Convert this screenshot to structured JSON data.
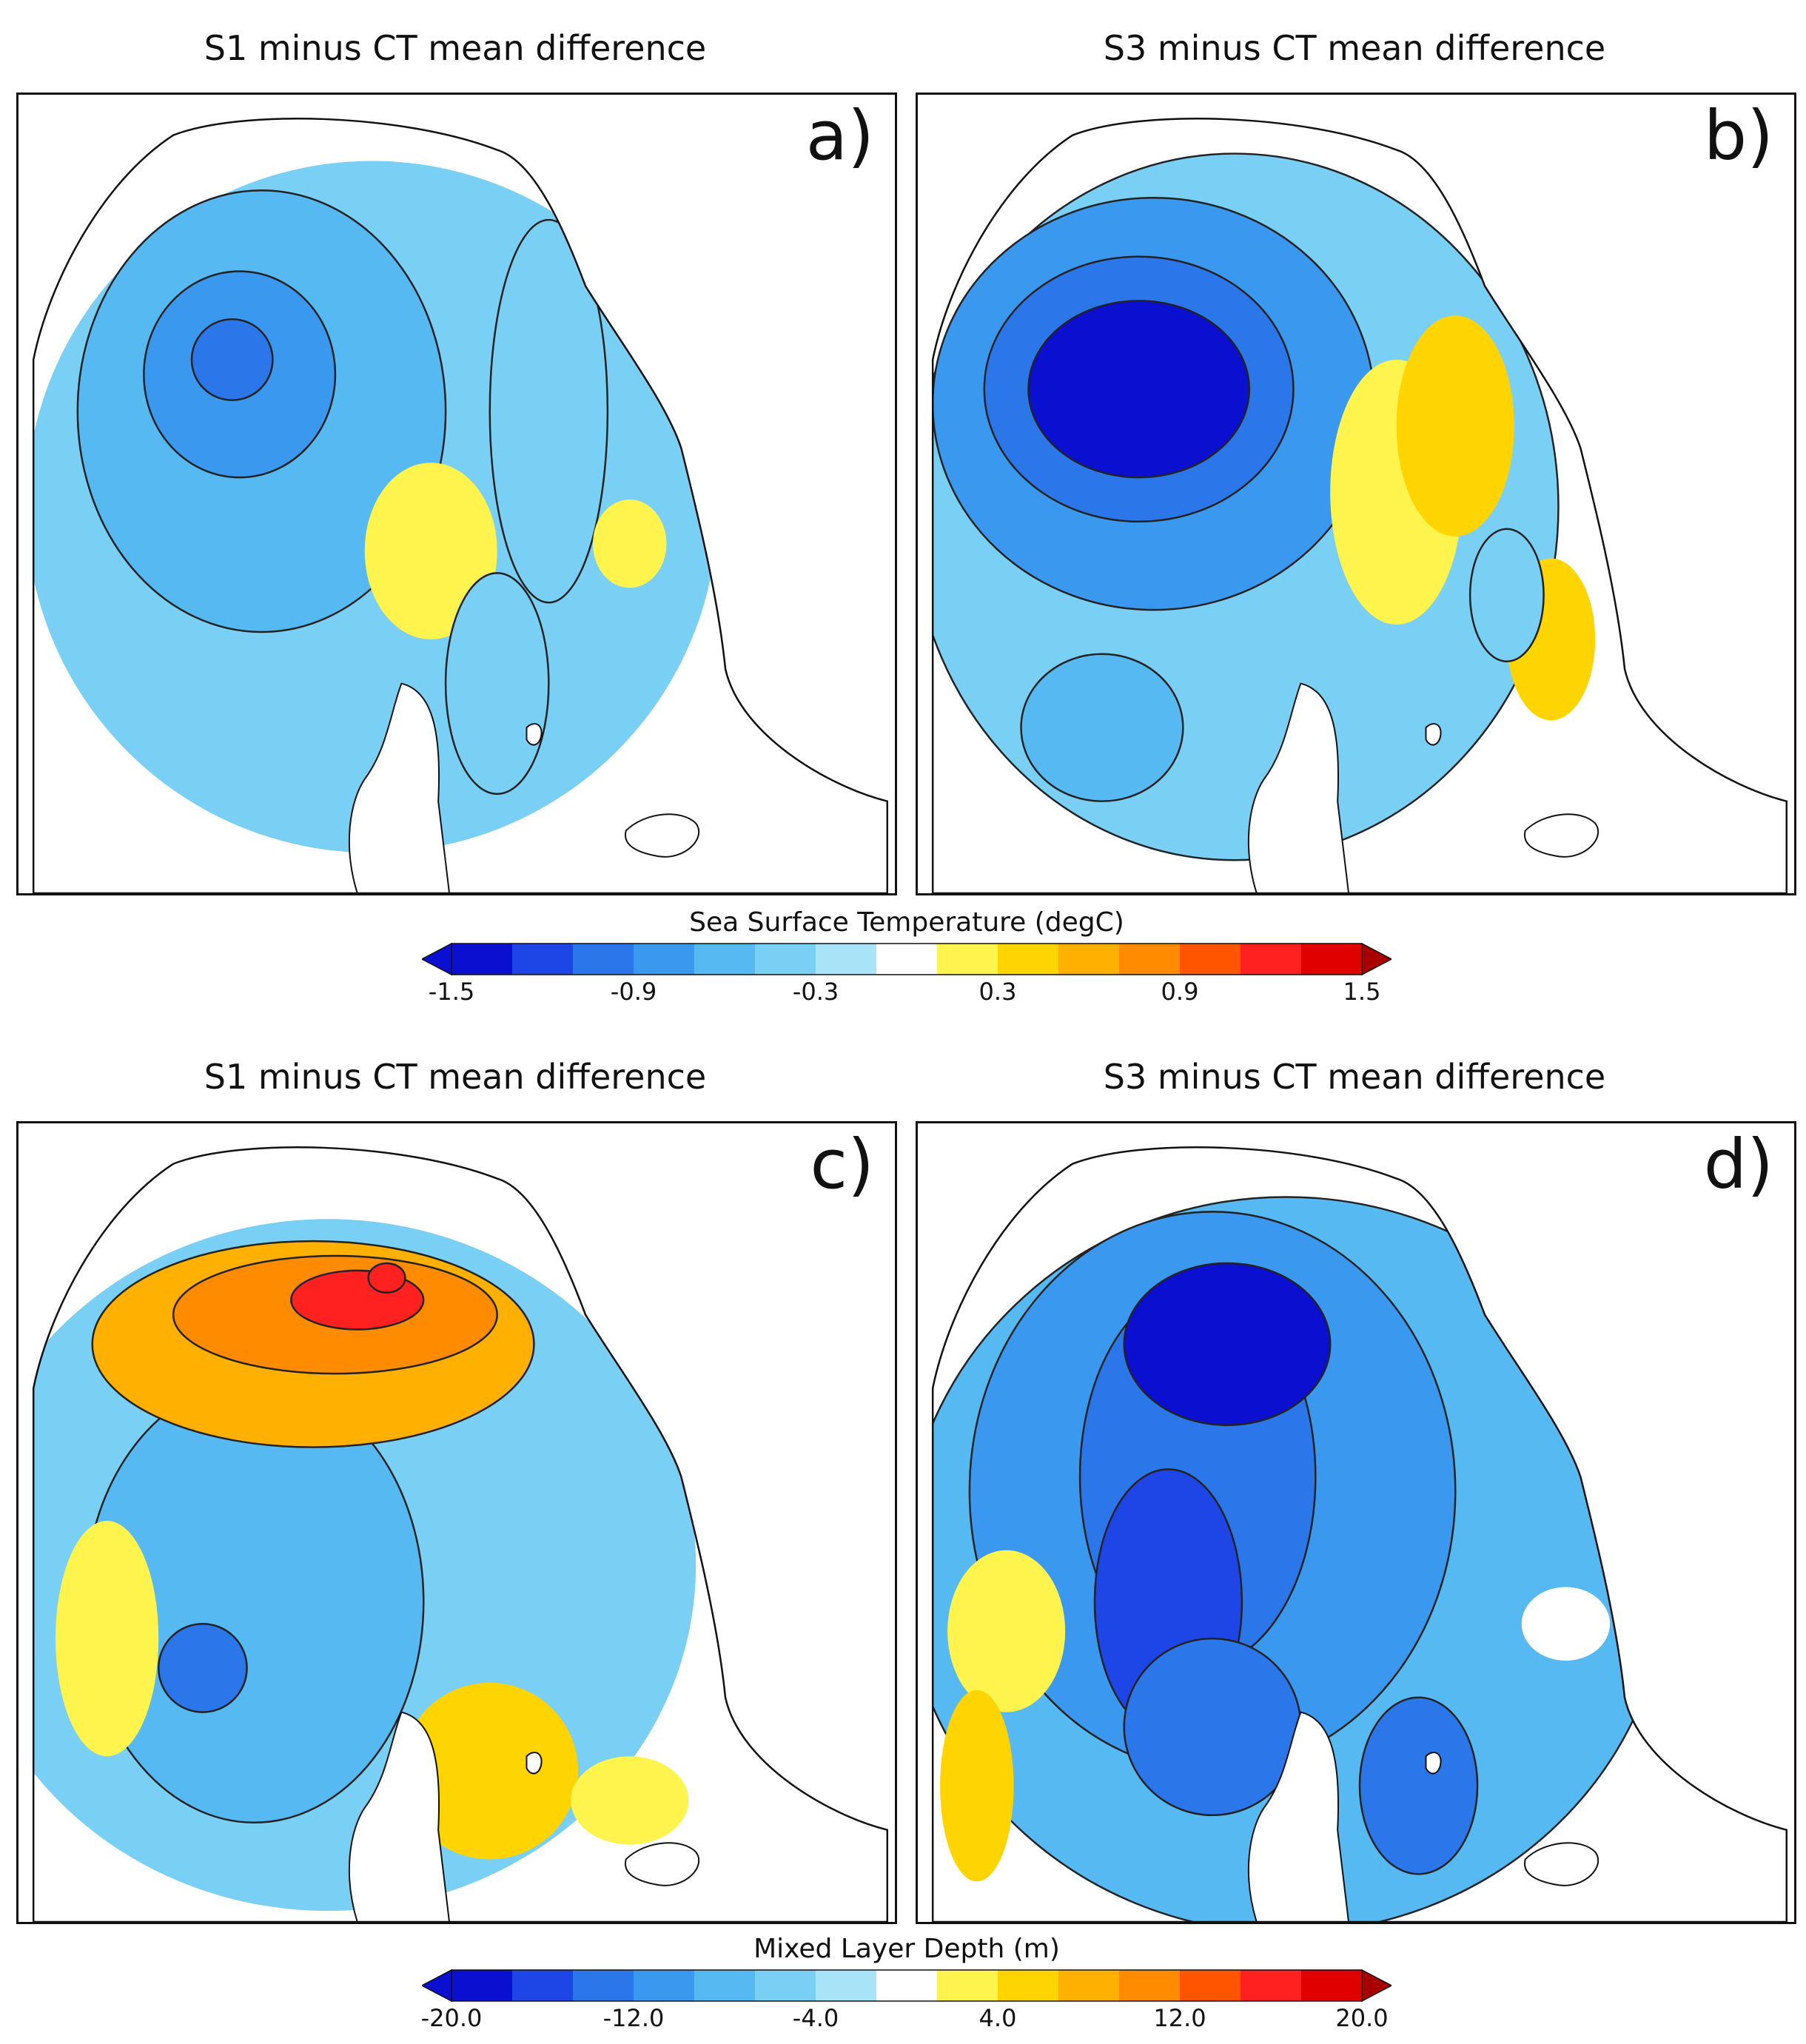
{
  "colors": {
    "palette": [
      "#0b0fd0",
      "#1e45e6",
      "#2b77ea",
      "#3b98ef",
      "#56b9f2",
      "#7acff5",
      "#a8e3f8",
      "#cdf4fa",
      "#ffffff",
      "#fff34d",
      "#ffd400",
      "#ffb000",
      "#ff8c00",
      "#ff5500",
      "#ff2020",
      "#e00000",
      "#a80000"
    ],
    "coast": "#111111"
  },
  "chart_data": [
    {
      "type": "heatmap",
      "panel": "a)",
      "title": "S1 minus CT mean difference",
      "variable": "Sea Surface Temperature (degC)",
      "colorbar_range": [
        -1.5,
        1.5
      ],
      "colorbar_ticks": [
        "-1.5",
        "-0.9",
        "-0.3",
        "0.3",
        "0.9",
        "1.5"
      ],
      "features": [
        {
          "kind": "warm patch",
          "value": 0.2
        },
        {
          "kind": "cool core",
          "value": -0.9
        },
        {
          "kind": "basin-wide cooling",
          "value": -0.4
        }
      ]
    },
    {
      "type": "heatmap",
      "panel": "b)",
      "title": "S3 minus CT mean difference",
      "variable": "Sea Surface Temperature (degC)",
      "colorbar_range": [
        -1.5,
        1.5
      ],
      "colorbar_ticks": [
        "-1.5",
        "-0.9",
        "-0.3",
        "0.3",
        "0.9",
        "1.5"
      ],
      "features": [
        {
          "kind": "cold core",
          "value": -1.5
        },
        {
          "kind": "warm band",
          "value": 0.3
        },
        {
          "kind": "warm patch south-east",
          "value": 0.3
        }
      ]
    },
    {
      "type": "heatmap",
      "panel": "c)",
      "title": "S1 minus CT mean difference",
      "variable": "Mixed Layer Depth (m)",
      "colorbar_range": [
        -20.0,
        20.0
      ],
      "colorbar_ticks": [
        "-20.0",
        "-12.0",
        "-4.0",
        "4.0",
        "12.0",
        "20.0"
      ],
      "features": [
        {
          "kind": "northern deepening arc",
          "value": 14.0
        },
        {
          "kind": "central shoaling",
          "value": -10.0
        }
      ]
    },
    {
      "type": "heatmap",
      "panel": "d)",
      "title": "S3 minus CT mean difference",
      "variable": "Mixed Layer Depth (m)",
      "colorbar_range": [
        -20.0,
        20.0
      ],
      "colorbar_ticks": [
        "-20.0",
        "-12.0",
        "-4.0",
        "4.0",
        "12.0",
        "20.0"
      ],
      "features": [
        {
          "kind": "central shoaling core",
          "value": -20.0
        },
        {
          "kind": "basin-wide shoaling",
          "value": -6.0
        },
        {
          "kind": "western positive patch",
          "value": 4.0
        }
      ]
    }
  ],
  "colorbars": [
    {
      "title": "Sea Surface Temperature (degC)",
      "ticks": [
        "-1.5",
        "-0.9",
        "-0.3",
        "0.3",
        "0.9",
        "1.5"
      ]
    },
    {
      "title": "Mixed Layer Depth (m)",
      "ticks": [
        "-20.0",
        "-12.0",
        "-4.0",
        "4.0",
        "12.0",
        "20.0"
      ]
    }
  ]
}
